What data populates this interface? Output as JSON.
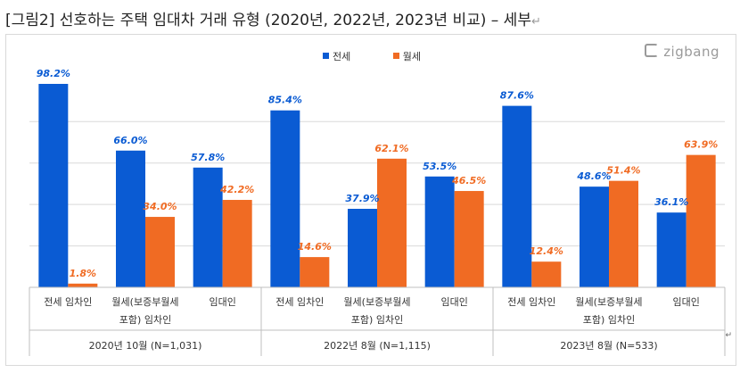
{
  "document": {
    "title": "[그림2] 선호하는 주택 임대차 거래 유형 (2020년, 2022년, 2023년 비교) – 세부",
    "paragraph_mark": "↵"
  },
  "logo": {
    "text": "zigbang",
    "icon": "zigbang-logo-icon"
  },
  "colors": {
    "jeonse": "#0a5bd3",
    "wolse": "#f06b23",
    "gridline": "#d9d9d9",
    "axis": "#bfbfbf"
  },
  "chart_data": {
    "type": "bar",
    "legend_position": "top",
    "grid": true,
    "ylim": [
      0,
      100
    ],
    "series": [
      {
        "name": "전세",
        "values": [
          98.2,
          66.0,
          57.8,
          85.4,
          37.9,
          53.5,
          87.6,
          48.6,
          36.1
        ]
      },
      {
        "name": "월세",
        "values": [
          1.8,
          34.0,
          42.2,
          14.6,
          62.1,
          46.5,
          12.4,
          51.4,
          63.9
        ]
      }
    ],
    "value_labels": {
      "jeonse": [
        "98.2%",
        "66.0%",
        "57.8%",
        "85.4%",
        "37.9%",
        "53.5%",
        "87.6%",
        "48.6%",
        "36.1%"
      ],
      "wolse": [
        "1.8%",
        "34.0%",
        "42.2%",
        "14.6%",
        "62.1%",
        "46.5%",
        "12.4%",
        "51.4%",
        "63.9%"
      ]
    },
    "categories": [
      [
        "전세 임차인"
      ],
      [
        "월세(보증부월세",
        "포함) 임차인"
      ],
      [
        "임대인"
      ],
      [
        "전세 임차인"
      ],
      [
        "월세(보증부월세",
        "포함) 임차인"
      ],
      [
        "임대인"
      ],
      [
        "전세 임차인"
      ],
      [
        "월세(보증부월세",
        "포함) 임차인"
      ],
      [
        "임대인"
      ]
    ],
    "groups": [
      "2020년 10월 (N=1,031)",
      "2022년 8월 (N=1,115)",
      "2023년 8월 (N=533)"
    ]
  }
}
